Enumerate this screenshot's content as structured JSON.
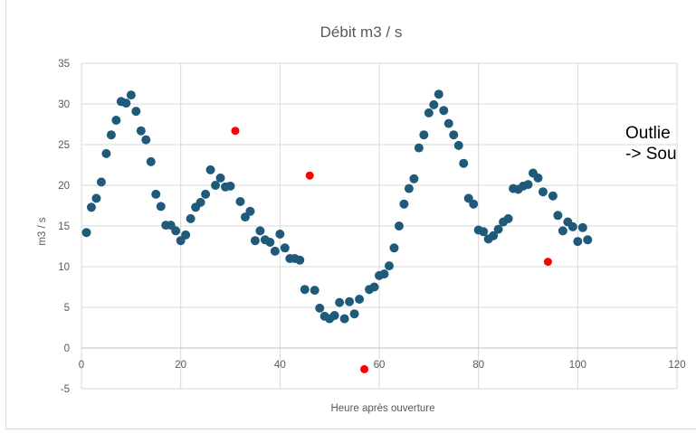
{
  "chart_data": {
    "type": "scatter",
    "title": "Débit m3 / s",
    "xlabel": "Heure après ouverture",
    "ylabel": "m3 / s",
    "xlim": [
      0,
      120
    ],
    "ylim": [
      -5,
      35
    ],
    "xticks": [
      0,
      20,
      40,
      60,
      80,
      100,
      120
    ],
    "yticks": [
      -5,
      0,
      5,
      10,
      15,
      20,
      25,
      30,
      35
    ],
    "grid": true,
    "legend": "none",
    "series": [
      {
        "color": "#1f5a7a",
        "points": [
          [
            1,
            14.2
          ],
          [
            2,
            17.3
          ],
          [
            3,
            18.4
          ],
          [
            4,
            20.4
          ],
          [
            5,
            23.9
          ],
          [
            6,
            26.2
          ],
          [
            7,
            28.0
          ],
          [
            8,
            30.3
          ],
          [
            9,
            30.1
          ],
          [
            10,
            31.1
          ],
          [
            11,
            29.1
          ],
          [
            12,
            26.7
          ],
          [
            13,
            25.6
          ],
          [
            14,
            22.9
          ],
          [
            15,
            18.9
          ],
          [
            16,
            17.4
          ],
          [
            17,
            15.1
          ],
          [
            18,
            15.1
          ],
          [
            19,
            14.4
          ],
          [
            20,
            13.2
          ],
          [
            21,
            13.9
          ],
          [
            22,
            15.9
          ],
          [
            23,
            17.3
          ],
          [
            24,
            17.9
          ],
          [
            25,
            18.9
          ],
          [
            26,
            21.9
          ],
          [
            27,
            20.0
          ],
          [
            28,
            20.9
          ],
          [
            29,
            19.8
          ],
          [
            30,
            19.9
          ],
          [
            32,
            18.0
          ],
          [
            33,
            16.1
          ],
          [
            34,
            16.8
          ],
          [
            35,
            13.2
          ],
          [
            36,
            14.4
          ],
          [
            37,
            13.3
          ],
          [
            38,
            13.0
          ],
          [
            39,
            11.9
          ],
          [
            40,
            14.0
          ],
          [
            41,
            12.3
          ],
          [
            42,
            11.0
          ],
          [
            43,
            11.0
          ],
          [
            44,
            10.8
          ],
          [
            45,
            7.2
          ],
          [
            47,
            7.1
          ],
          [
            48,
            4.9
          ],
          [
            49,
            3.9
          ],
          [
            50,
            3.6
          ],
          [
            51,
            4.0
          ],
          [
            52,
            5.6
          ],
          [
            53,
            3.6
          ],
          [
            54,
            5.7
          ],
          [
            55,
            4.2
          ],
          [
            56,
            6.0
          ],
          [
            58,
            7.2
          ],
          [
            59,
            7.5
          ],
          [
            60,
            8.9
          ],
          [
            61,
            9.1
          ],
          [
            62,
            10.1
          ],
          [
            63,
            12.3
          ],
          [
            64,
            15.0
          ],
          [
            65,
            17.7
          ],
          [
            66,
            19.6
          ],
          [
            67,
            20.8
          ],
          [
            68,
            24.6
          ],
          [
            69,
            26.2
          ],
          [
            70,
            28.9
          ],
          [
            71,
            29.9
          ],
          [
            72,
            31.2
          ],
          [
            73,
            29.2
          ],
          [
            74,
            27.6
          ],
          [
            75,
            26.2
          ],
          [
            76,
            24.9
          ],
          [
            77,
            22.7
          ],
          [
            78,
            18.4
          ],
          [
            79,
            17.7
          ],
          [
            80,
            14.5
          ],
          [
            81,
            14.3
          ],
          [
            82,
            13.4
          ],
          [
            83,
            13.8
          ],
          [
            84,
            14.6
          ],
          [
            85,
            15.5
          ],
          [
            86,
            15.9
          ],
          [
            87,
            19.6
          ],
          [
            88,
            19.5
          ],
          [
            89,
            19.9
          ],
          [
            90,
            20.1
          ],
          [
            91,
            21.5
          ],
          [
            92,
            20.9
          ],
          [
            93,
            19.2
          ],
          [
            95,
            18.7
          ],
          [
            96,
            16.3
          ],
          [
            97,
            14.4
          ],
          [
            98,
            15.5
          ],
          [
            99,
            14.9
          ],
          [
            100,
            13.1
          ],
          [
            101,
            14.8
          ],
          [
            102,
            13.3
          ]
        ]
      },
      {
        "color": "#ff0000",
        "points": [
          [
            31,
            26.7
          ],
          [
            46,
            21.2
          ],
          [
            57,
            -2.6
          ],
          [
            94,
            10.6
          ]
        ]
      }
    ],
    "annotation": {
      "lines": [
        "Outlie",
        "-> Sou"
      ]
    }
  }
}
